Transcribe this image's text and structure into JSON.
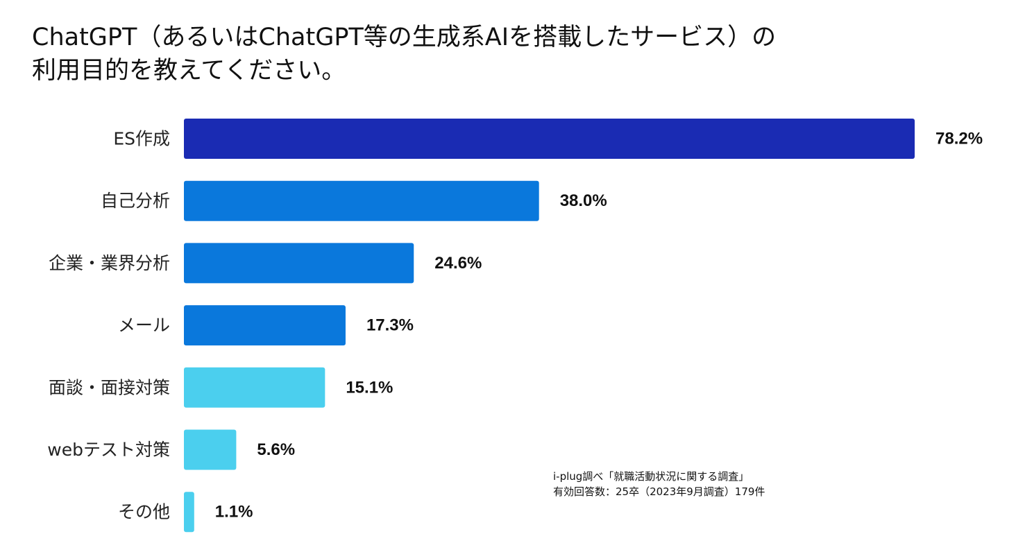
{
  "title_line1": "ChatGPT（あるいはChatGPT等の生成系AIを搭載したサービス）の",
  "title_line2": "利用目的を教えてください。",
  "source_line1": "i-plug調べ「就職活動状況に関する調査」",
  "source_line2": "有効回答数：25卒（2023年9月調査）179件",
  "chart_data": {
    "type": "bar",
    "orientation": "horizontal",
    "title": "ChatGPT（あるいはChatGPT等の生成系AIを搭載したサービス）の利用目的を教えてください。",
    "categories": [
      "ES作成",
      "自己分析",
      "企業・業界分析",
      "メール",
      "面談・面接対策",
      "webテスト対策",
      "その他"
    ],
    "values": [
      78.2,
      38.0,
      24.6,
      17.3,
      15.1,
      5.6,
      1.1
    ],
    "value_labels": [
      "78.2%",
      "38.0%",
      "24.6%",
      "17.3%",
      "15.1%",
      "5.6%",
      "1.1%"
    ],
    "unit": "%",
    "xlim": [
      0,
      78.2
    ],
    "colors": [
      "#1a2bb3",
      "#0a78dc",
      "#0a78dc",
      "#0a78dc",
      "#4bcfee",
      "#4bcfee",
      "#4bcfee"
    ],
    "grid": false,
    "legend": "none"
  }
}
